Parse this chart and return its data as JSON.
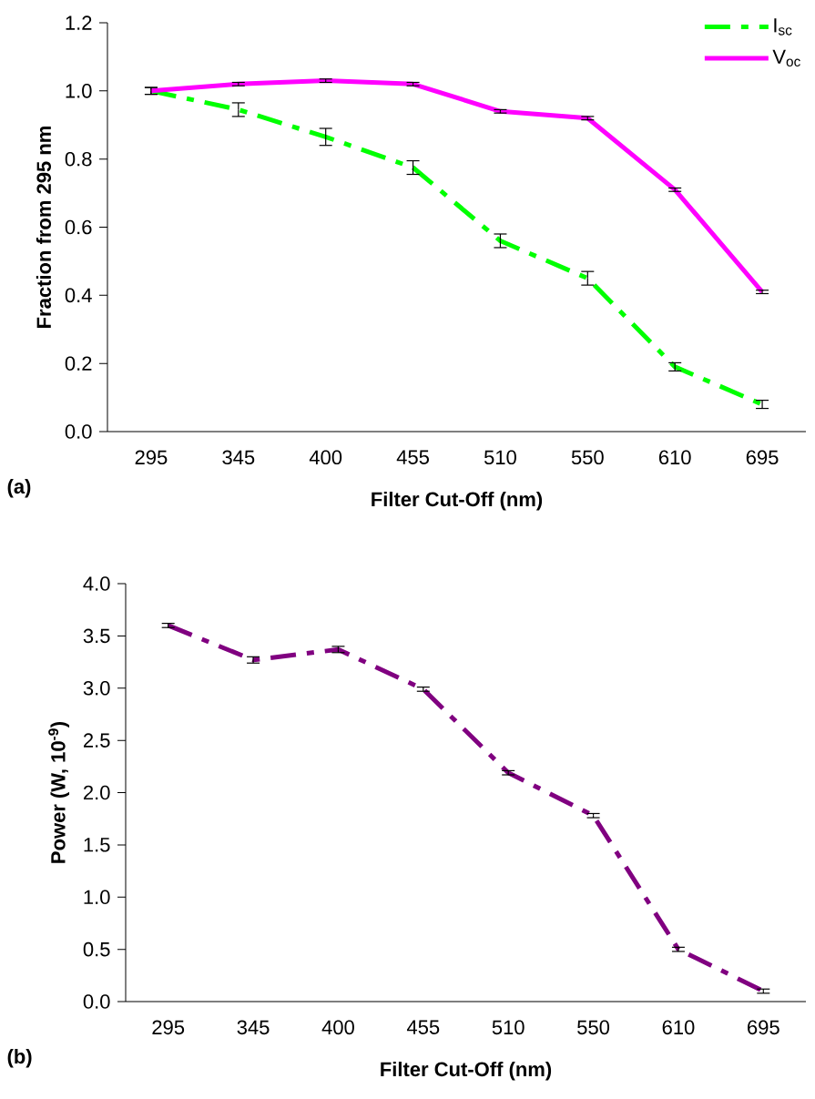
{
  "chart_data": [
    {
      "type": "line",
      "xlabel": "Filter Cut-Off (nm)",
      "ylabel": "Fraction from 295 nm",
      "categories": [
        "295",
        "345",
        "400",
        "455",
        "510",
        "550",
        "610",
        "695"
      ],
      "series": [
        {
          "name": "I$_{sc}$",
          "color": "#00ff00",
          "line_style": "dashed",
          "values": [
            1.0,
            0.945,
            0.865,
            0.775,
            0.56,
            0.45,
            0.19,
            0.08
          ],
          "errors": [
            0.01,
            0.02,
            0.025,
            0.02,
            0.02,
            0.02,
            0.012,
            0.012
          ]
        },
        {
          "name": "V$_{oc}$",
          "color": "#ff00ff",
          "line_style": "solid",
          "values": [
            1.0,
            1.02,
            1.03,
            1.02,
            0.94,
            0.92,
            0.71,
            0.41
          ],
          "errors": [
            0.01,
            0.005,
            0.005,
            0.005,
            0.005,
            0.005,
            0.005,
            0.005
          ]
        }
      ],
      "ylim": [
        0,
        1.2
      ],
      "yticks": [
        {
          "value": 0,
          "label": "0.0"
        },
        {
          "value": 0.2,
          "label": "0.2"
        },
        {
          "value": 0.4,
          "label": "0.4"
        },
        {
          "value": 0.6,
          "label": "0.6"
        },
        {
          "value": 0.8,
          "label": "0.8"
        },
        {
          "value": 1.0,
          "label": "1.0"
        },
        {
          "value": 1.2,
          "label": "1.2"
        }
      ],
      "grid": false,
      "legend": "top right",
      "marker": "none",
      "annotations": [
        "(a)"
      ]
    },
    {
      "type": "line",
      "xlabel": "Filter Cut-Off (nm)",
      "ylabel": "Power (W, 10$^{-9}$)",
      "categories": [
        "295",
        "345",
        "400",
        "455",
        "510",
        "550",
        "610",
        "695"
      ],
      "series": [
        {
          "color": "#800080",
          "line_style": "dashed",
          "values": [
            3.6,
            3.27,
            3.37,
            2.99,
            2.19,
            1.78,
            0.5,
            0.1
          ],
          "errors": [
            0.02,
            0.03,
            0.03,
            0.02,
            0.02,
            0.02,
            0.02,
            0.02
          ]
        }
      ],
      "ylim": [
        0,
        4.0
      ],
      "yticks": [
        {
          "value": 0,
          "label": "0.0"
        },
        {
          "value": 0.5,
          "label": "0.5"
        },
        {
          "value": 1.0,
          "label": "1.0"
        },
        {
          "value": 1.5,
          "label": "1.5"
        },
        {
          "value": 2.0,
          "label": "2.0"
        },
        {
          "value": 2.5,
          "label": "2.5"
        },
        {
          "value": 3.0,
          "label": "3.0"
        },
        {
          "value": 3.5,
          "label": "3.5"
        },
        {
          "value": 4.0,
          "label": "4.0"
        }
      ],
      "grid": false,
      "legend": false,
      "marker": "none",
      "annotations": [
        "(b)"
      ]
    }
  ]
}
